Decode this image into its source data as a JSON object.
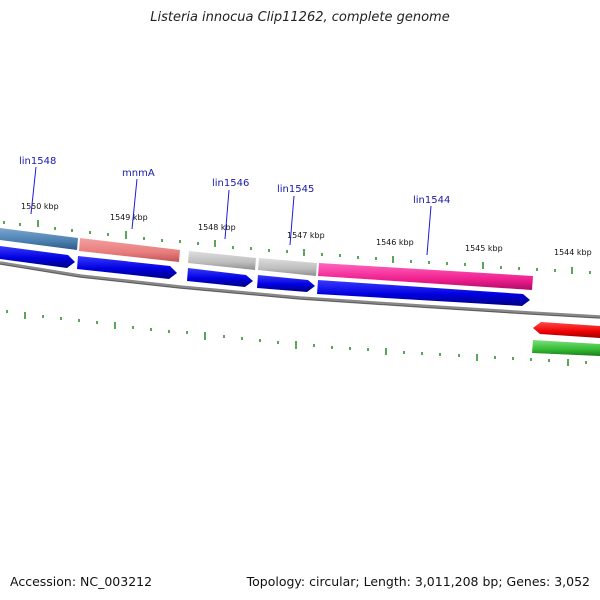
{
  "title": "Listeria innocua Clip11262, complete genome",
  "footer": {
    "accession": "Accession: NC_003212",
    "summary": "Topology: circular; Length: 3,011,208 bp; Genes: 3,052"
  },
  "scale_labels": [
    "1550 kbp",
    "1549 kbp",
    "1548 kbp",
    "1547 kbp",
    "1546 kbp",
    "1545 kbp",
    "1544 kbp"
  ],
  "gene_labels": [
    "lin1548",
    "mnmA",
    "lin1546",
    "lin1545",
    "lin1544"
  ],
  "colors": {
    "cds_strand": "#0000ee",
    "reverse_cds": "#ee0000",
    "reverse_gene": "#33bb33",
    "ticks": "#228822",
    "backbone": "#888888",
    "label_line": "#1a1add"
  }
}
